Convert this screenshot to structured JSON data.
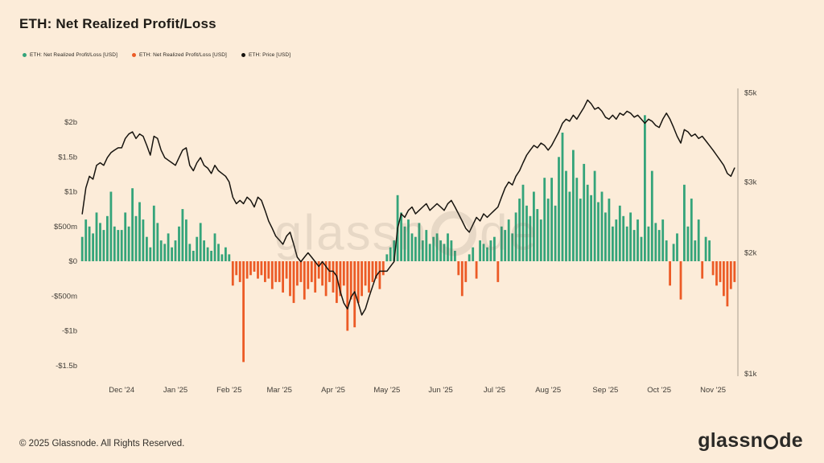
{
  "title": "ETH: Net Realized Profit/Loss",
  "legend": {
    "items": [
      {
        "label": "ETH: Net Realized Profit/Loss [USD]",
        "color": "#34a47a",
        "icon": "green-dot"
      },
      {
        "label": "ETH: Net Realized Profit/Loss [USD]",
        "color": "#ec5b26",
        "icon": "orange-dot"
      },
      {
        "label": "ETH: Price [USD]",
        "color": "#17140f",
        "icon": "black-dot"
      }
    ]
  },
  "watermark": {
    "text_left": "glassn",
    "text_right": "de"
  },
  "footer": {
    "copyright": "© 2025 Glassnode. All Rights Reserved.",
    "logo_text_left": "glassn",
    "logo_text_right": "de"
  },
  "chart_data": {
    "type": "bar+line",
    "title": "ETH: Net Realized Profit/Loss",
    "x_range": [
      "Nov 2024",
      "Nov 2025"
    ],
    "grid": "off",
    "legend_position": "top-left",
    "x_ticks": [
      {
        "label": "Dec '24",
        "index": 11
      },
      {
        "label": "Jan '25",
        "index": 26
      },
      {
        "label": "Feb '25",
        "index": 41
      },
      {
        "label": "Mar '25",
        "index": 55
      },
      {
        "label": "Apr '25",
        "index": 70
      },
      {
        "label": "May '25",
        "index": 85
      },
      {
        "label": "Jun '25",
        "index": 100
      },
      {
        "label": "Jul '25",
        "index": 115
      },
      {
        "label": "Aug '25",
        "index": 130
      },
      {
        "label": "Sep '25",
        "index": 146
      },
      {
        "label": "Oct '25",
        "index": 161
      },
      {
        "label": "Nov '25",
        "index": 176
      }
    ],
    "left_axis": {
      "title": "Net Realized Profit/Loss [USD]",
      "scale": "linear",
      "range_billions": [
        -1.75,
        2.45
      ],
      "ticks": [
        {
          "label": "$2b",
          "value": 2
        },
        {
          "label": "$1.5b",
          "value": 1.5
        },
        {
          "label": "$1b",
          "value": 1
        },
        {
          "label": "$500m",
          "value": 0.5
        },
        {
          "label": "$0",
          "value": 0
        },
        {
          "label": "-$500m",
          "value": -0.5
        },
        {
          "label": "-$1b",
          "value": -1
        },
        {
          "label": "-$1.5b",
          "value": -1.5
        }
      ]
    },
    "right_axis": {
      "title": "Price [USD]",
      "scale": "log",
      "range_thousands": [
        1,
        5.2
      ],
      "ticks": [
        {
          "label": "$5k",
          "value": 5
        },
        {
          "label": "$3k",
          "value": 3
        },
        {
          "label": "$2k",
          "value": 2
        },
        {
          "label": "$1k",
          "value": 1
        }
      ]
    },
    "series": [
      {
        "name": "ETH: Net Realized Profit/Loss [USD]",
        "type": "bar",
        "unit": "billions USD",
        "values": [
          0.35,
          0.6,
          0.5,
          0.4,
          0.7,
          0.55,
          0.45,
          0.65,
          1.0,
          0.5,
          0.45,
          0.45,
          0.7,
          0.5,
          1.05,
          0.65,
          0.85,
          0.6,
          0.35,
          0.2,
          0.8,
          0.55,
          0.3,
          0.25,
          0.4,
          0.2,
          0.3,
          0.5,
          0.75,
          0.6,
          0.25,
          0.15,
          0.35,
          0.55,
          0.3,
          0.2,
          0.15,
          0.4,
          0.25,
          0.1,
          0.2,
          0.1,
          -0.35,
          -0.2,
          -0.3,
          -1.45,
          -0.25,
          -0.2,
          -0.15,
          -0.25,
          -0.2,
          -0.3,
          -0.25,
          -0.4,
          -0.3,
          -0.3,
          -0.45,
          -0.25,
          -0.5,
          -0.6,
          -0.35,
          -0.3,
          -0.55,
          -0.4,
          -0.3,
          -0.45,
          -0.25,
          -0.35,
          -0.5,
          -0.3,
          -0.45,
          -0.6,
          -0.5,
          -0.35,
          -1.0,
          -0.55,
          -0.95,
          -0.6,
          -0.5,
          -0.35,
          -0.45,
          -0.3,
          -0.25,
          -0.4,
          -0.2,
          0.1,
          0.2,
          0.3,
          0.95,
          0.7,
          0.5,
          0.6,
          0.4,
          0.35,
          0.55,
          0.3,
          0.45,
          0.25,
          0.35,
          0.4,
          0.3,
          0.25,
          0.4,
          0.3,
          0.15,
          -0.2,
          -0.5,
          -0.3,
          0.1,
          0.2,
          -0.25,
          0.3,
          0.25,
          0.2,
          0.3,
          0.35,
          -0.3,
          0.5,
          0.45,
          0.6,
          0.4,
          0.7,
          0.9,
          1.1,
          0.8,
          0.65,
          1.0,
          0.75,
          0.6,
          1.2,
          0.9,
          1.2,
          0.8,
          1.5,
          1.85,
          1.3,
          1.0,
          1.6,
          1.2,
          0.9,
          1.4,
          1.1,
          0.95,
          1.3,
          0.85,
          1.0,
          0.7,
          0.9,
          0.5,
          0.6,
          0.8,
          0.65,
          0.5,
          0.7,
          0.45,
          0.6,
          0.35,
          2.1,
          0.5,
          1.3,
          0.55,
          0.45,
          0.6,
          0.3,
          -0.35,
          0.25,
          0.4,
          -0.55,
          1.1,
          0.5,
          0.9,
          0.3,
          0.6,
          -0.25,
          0.35,
          0.3,
          -0.2,
          -0.35,
          -0.3,
          -0.5,
          -0.65,
          -0.4,
          -0.3
        ]
      },
      {
        "name": "ETH: Price [USD]",
        "type": "line",
        "unit": "thousands USD",
        "values": [
          2.5,
          2.9,
          3.1,
          3.05,
          3.3,
          3.35,
          3.3,
          3.45,
          3.55,
          3.6,
          3.65,
          3.65,
          3.85,
          3.95,
          4.0,
          3.85,
          3.95,
          3.9,
          3.7,
          3.5,
          3.9,
          3.85,
          3.6,
          3.45,
          3.4,
          3.35,
          3.3,
          3.45,
          3.6,
          3.65,
          3.3,
          3.2,
          3.35,
          3.45,
          3.3,
          3.25,
          3.15,
          3.3,
          3.2,
          3.15,
          3.1,
          3.0,
          2.75,
          2.65,
          2.7,
          2.65,
          2.75,
          2.7,
          2.6,
          2.75,
          2.7,
          2.55,
          2.4,
          2.3,
          2.2,
          2.15,
          2.1,
          2.2,
          2.25,
          2.1,
          1.95,
          1.9,
          1.95,
          2.0,
          1.95,
          1.9,
          1.85,
          1.9,
          1.85,
          1.8,
          1.8,
          1.75,
          1.6,
          1.5,
          1.45,
          1.55,
          1.6,
          1.5,
          1.4,
          1.45,
          1.55,
          1.65,
          1.75,
          1.8,
          1.8,
          1.8,
          1.85,
          1.9,
          2.3,
          2.5,
          2.45,
          2.55,
          2.6,
          2.5,
          2.55,
          2.6,
          2.65,
          2.55,
          2.6,
          2.65,
          2.6,
          2.55,
          2.65,
          2.7,
          2.6,
          2.5,
          2.4,
          2.3,
          2.25,
          2.35,
          2.45,
          2.4,
          2.5,
          2.45,
          2.5,
          2.55,
          2.6,
          2.75,
          2.9,
          3.0,
          2.95,
          3.1,
          3.2,
          3.35,
          3.5,
          3.6,
          3.7,
          3.65,
          3.75,
          3.7,
          3.6,
          3.7,
          3.85,
          4.0,
          4.2,
          4.3,
          4.25,
          4.4,
          4.3,
          4.45,
          4.6,
          4.8,
          4.7,
          4.55,
          4.6,
          4.5,
          4.35,
          4.3,
          4.4,
          4.3,
          4.45,
          4.4,
          4.5,
          4.45,
          4.35,
          4.4,
          4.3,
          4.2,
          4.3,
          4.25,
          4.15,
          4.1,
          4.3,
          4.45,
          4.3,
          4.1,
          3.9,
          3.75,
          4.05,
          4.0,
          3.9,
          3.95,
          3.85,
          3.9,
          3.8,
          3.7,
          3.6,
          3.5,
          3.4,
          3.3,
          3.15,
          3.1,
          3.25
        ]
      }
    ],
    "colors": {
      "profit": "#34a47a",
      "loss": "#ec5b26",
      "price": "#17140f"
    }
  }
}
